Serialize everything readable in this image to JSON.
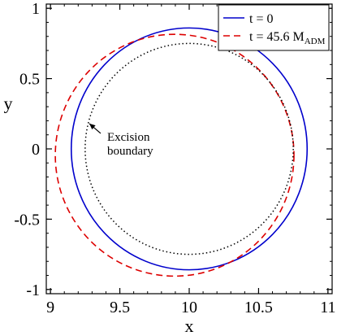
{
  "chart_data": {
    "type": "line",
    "xlabel": "x",
    "ylabel": "y",
    "xlim": [
      8.97,
      11.03
    ],
    "ylim": [
      -1.03,
      1.03
    ],
    "x_ticks": [
      9,
      9.5,
      10,
      10.5,
      11
    ],
    "x_tick_labels": [
      "9",
      "9.5",
      "10",
      "10.5",
      "11"
    ],
    "y_ticks": [
      -1,
      -0.5,
      0,
      0.5,
      1
    ],
    "y_tick_labels": [
      "-1",
      "-0.5",
      "0",
      "0.5",
      "1"
    ],
    "legend_position": "top-right",
    "series": [
      {
        "name": "t = 0",
        "name_main": "t = 0",
        "name_sub": "",
        "color": "#0000cc",
        "style": "solid",
        "shape": "circle",
        "center": [
          10.0,
          0.0
        ],
        "radius_x": 0.85,
        "radius_y": 0.86,
        "in_legend": true
      },
      {
        "name": "t = 45.6 M_ADM",
        "name_main": "t = 45.6 M",
        "name_sub": "ADM",
        "color": "#dd0000",
        "style": "dashed",
        "shape": "circle",
        "center": [
          9.895,
          -0.045
        ],
        "radius_x": 0.86,
        "radius_y": 0.86,
        "in_legend": true
      },
      {
        "name": "",
        "color": "#000000",
        "style": "dotted",
        "shape": "circle",
        "center": [
          10.0,
          0.0
        ],
        "radius_x": 0.75,
        "radius_y": 0.75,
        "in_legend": false
      }
    ],
    "annotations": [
      {
        "text_lines": [
          "Excision",
          "boundary"
        ],
        "arrow_target": [
          9.28,
          0.18
        ]
      }
    ]
  }
}
